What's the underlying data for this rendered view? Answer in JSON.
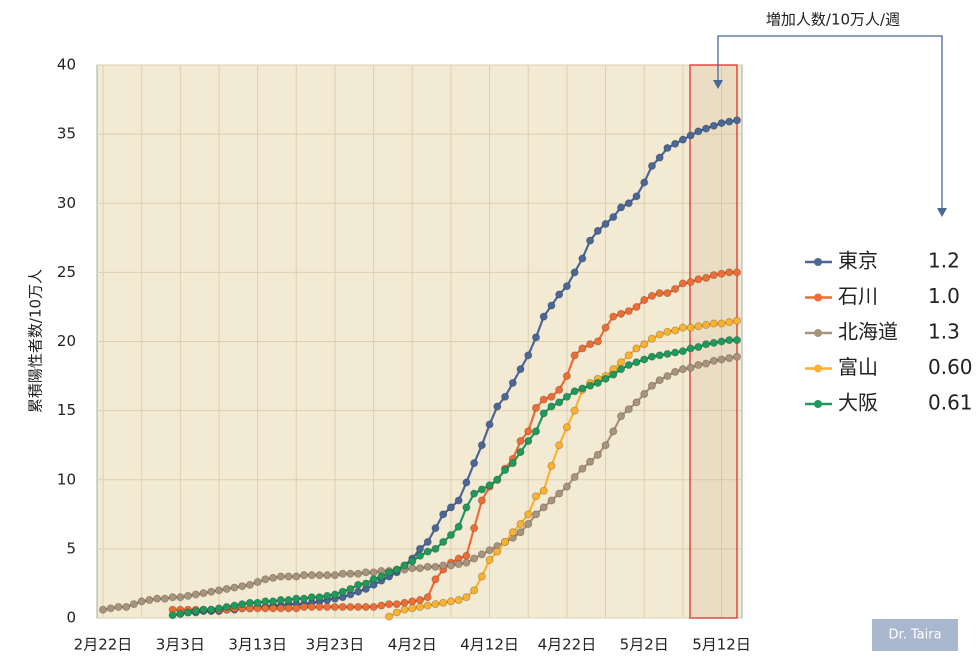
{
  "chart_data": {
    "type": "line",
    "y_label": "累積陽性者数/10万人",
    "annotation": "増加人数/10万人/週",
    "credit": "Dr. Taira",
    "grid": true,
    "ylim": [
      0,
      40
    ],
    "yticks": [
      0,
      5,
      10,
      15,
      20,
      25,
      30,
      35,
      40
    ],
    "categories": [
      "2月22日",
      null,
      null,
      null,
      null,
      null,
      null,
      null,
      null,
      null,
      "3月3日",
      null,
      null,
      null,
      null,
      null,
      null,
      null,
      null,
      null,
      "3月13日",
      null,
      null,
      null,
      null,
      null,
      null,
      null,
      null,
      null,
      "3月23日",
      null,
      null,
      null,
      null,
      null,
      null,
      null,
      null,
      null,
      "4月2日",
      null,
      null,
      null,
      null,
      null,
      null,
      null,
      null,
      null,
      "4月12日",
      null,
      null,
      null,
      null,
      null,
      null,
      null,
      null,
      null,
      "4月22日",
      null,
      null,
      null,
      null,
      null,
      null,
      null,
      null,
      null,
      "5月2日",
      null,
      null,
      null,
      null,
      null,
      null,
      null,
      null,
      null,
      "5月12日",
      null,
      null
    ],
    "series": [
      {
        "name": "東京",
        "color": "#4a6796",
        "weekly": 1.2,
        "values": [
          null,
          null,
          null,
          null,
          null,
          null,
          null,
          null,
          null,
          null,
          0.3,
          0.4,
          0.4,
          0.5,
          0.5,
          0.5,
          0.6,
          0.6,
          0.7,
          0.7,
          0.8,
          0.8,
          0.9,
          0.9,
          1.0,
          1.0,
          1.0,
          1.1,
          1.2,
          1.3,
          1.4,
          1.5,
          1.7,
          1.9,
          2.1,
          2.4,
          2.7,
          3.0,
          3.3,
          3.8,
          4.3,
          5.0,
          5.5,
          6.5,
          7.5,
          8.0,
          8.5,
          9.8,
          11.2,
          12.5,
          14.0,
          15.3,
          16.0,
          17.0,
          18.0,
          19.0,
          20.3,
          21.8,
          22.6,
          23.4,
          24.0,
          25.0,
          26.0,
          27.3,
          28.0,
          28.5,
          29.0,
          29.7,
          30.0,
          30.5,
          31.5,
          32.7,
          33.3,
          34.0,
          34.3,
          34.6,
          34.9,
          35.2,
          35.4,
          35.6,
          35.8,
          35.9,
          36.0
        ]
      },
      {
        "name": "石川",
        "color": "#ed6d35",
        "weekly": {
          "value": 1.0,
          "label": "1.0"
        },
        "values": [
          null,
          null,
          null,
          null,
          null,
          null,
          null,
          null,
          null,
          0.6,
          0.6,
          0.6,
          0.6,
          0.6,
          0.6,
          0.6,
          0.6,
          0.7,
          0.7,
          0.7,
          0.7,
          0.7,
          0.7,
          0.7,
          0.7,
          0.7,
          0.8,
          0.8,
          0.8,
          0.8,
          0.8,
          0.8,
          0.8,
          0.8,
          0.8,
          0.8,
          0.9,
          1.0,
          1.0,
          1.1,
          1.2,
          1.3,
          1.5,
          2.8,
          3.5,
          4.0,
          4.3,
          4.5,
          6.5,
          8.5,
          9.5,
          10.0,
          10.8,
          11.5,
          12.8,
          13.5,
          15.2,
          15.8,
          16.0,
          16.5,
          17.5,
          19.0,
          19.5,
          19.8,
          20.0,
          21.0,
          21.8,
          22.0,
          22.2,
          22.5,
          23.0,
          23.3,
          23.5,
          23.5,
          23.8,
          24.2,
          24.3,
          24.5,
          24.6,
          24.8,
          24.9,
          25.0,
          25.0
        ]
      },
      {
        "name": "北海道",
        "color": "#a8937b",
        "weekly": 1.3,
        "values": [
          0.6,
          0.7,
          0.8,
          0.8,
          1.0,
          1.2,
          1.3,
          1.4,
          1.4,
          1.5,
          1.5,
          1.6,
          1.7,
          1.8,
          1.9,
          2.0,
          2.1,
          2.2,
          2.3,
          2.4,
          2.6,
          2.8,
          2.9,
          3.0,
          3.0,
          3.0,
          3.1,
          3.1,
          3.1,
          3.1,
          3.1,
          3.2,
          3.2,
          3.2,
          3.3,
          3.3,
          3.4,
          3.4,
          3.5,
          3.5,
          3.6,
          3.6,
          3.7,
          3.7,
          3.8,
          3.8,
          3.9,
          4.0,
          4.3,
          4.6,
          4.9,
          5.2,
          5.5,
          5.8,
          6.2,
          6.8,
          7.5,
          8.0,
          8.5,
          9.0,
          9.5,
          10.2,
          10.8,
          11.3,
          11.8,
          12.5,
          13.5,
          14.6,
          15.1,
          15.6,
          16.2,
          16.8,
          17.2,
          17.5,
          17.8,
          18.0,
          18.1,
          18.3,
          18.4,
          18.6,
          18.7,
          18.8,
          18.9
        ]
      },
      {
        "name": "富山",
        "color": "#fbb231",
        "weekly": {
          "value": 0.6,
          "label": "0.60"
        },
        "values": [
          null,
          null,
          null,
          null,
          null,
          null,
          null,
          null,
          null,
          null,
          null,
          null,
          null,
          null,
          null,
          null,
          null,
          null,
          null,
          null,
          null,
          null,
          null,
          null,
          null,
          null,
          null,
          null,
          null,
          null,
          null,
          null,
          null,
          null,
          null,
          null,
          null,
          0.1,
          0.4,
          0.6,
          0.7,
          0.8,
          0.9,
          1.0,
          1.1,
          1.2,
          1.3,
          1.5,
          2.0,
          3.0,
          4.2,
          4.8,
          5.5,
          6.2,
          6.8,
          7.5,
          8.8,
          9.2,
          11.0,
          12.5,
          13.8,
          15.0,
          16.5,
          17.0,
          17.3,
          17.5,
          18.0,
          18.5,
          19.0,
          19.5,
          19.8,
          20.2,
          20.5,
          20.7,
          20.8,
          21.0,
          21.0,
          21.1,
          21.2,
          21.3,
          21.3,
          21.4,
          21.5
        ]
      },
      {
        "name": "大阪",
        "color": "#1f9a5c",
        "weekly": 0.61,
        "values": [
          null,
          null,
          null,
          null,
          null,
          null,
          null,
          null,
          null,
          0.2,
          0.3,
          0.4,
          0.5,
          0.6,
          0.6,
          0.7,
          0.8,
          0.9,
          1.0,
          1.1,
          1.1,
          1.2,
          1.2,
          1.3,
          1.3,
          1.4,
          1.4,
          1.5,
          1.5,
          1.6,
          1.7,
          1.9,
          2.1,
          2.4,
          2.5,
          2.8,
          3.0,
          3.3,
          3.5,
          3.8,
          4.1,
          4.5,
          4.8,
          5.0,
          5.5,
          6.0,
          6.6,
          8.0,
          9.0,
          9.3,
          9.6,
          10.0,
          10.7,
          11.2,
          12.0,
          12.8,
          13.5,
          14.8,
          15.3,
          15.6,
          16.0,
          16.4,
          16.6,
          16.8,
          17.0,
          17.3,
          17.6,
          18.0,
          18.3,
          18.5,
          18.7,
          18.9,
          19.0,
          19.1,
          19.2,
          19.3,
          19.5,
          19.6,
          19.8,
          19.9,
          20.0,
          20.1,
          20.1
        ]
      }
    ]
  }
}
